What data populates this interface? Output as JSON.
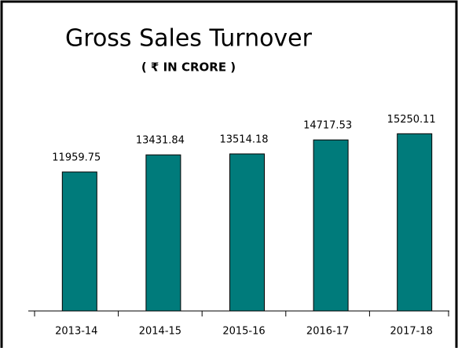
{
  "chart_data": {
    "type": "bar",
    "title": "Gross Sales Turnover",
    "subtitle": "( ₹ IN CRORE )",
    "categories": [
      "2013-14",
      "2014-15",
      "2015-16",
      "2016-17",
      "2017-18"
    ],
    "values": [
      11959.75,
      13431.84,
      13514.18,
      14717.53,
      15250.11
    ],
    "color": "#007b7b",
    "ylim": [
      0,
      20000
    ]
  }
}
